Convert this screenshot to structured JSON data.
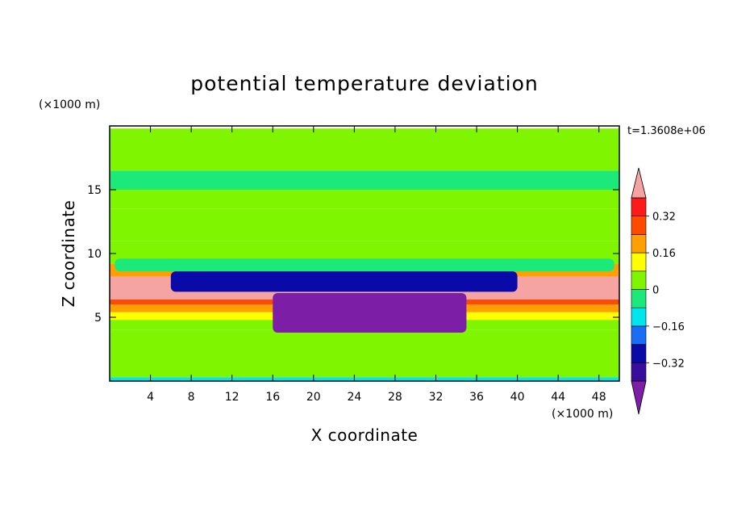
{
  "chart_data": {
    "type": "heatmap",
    "title": "potential temperature deviation",
    "xlabel": "X coordinate",
    "ylabel": "Z coordinate",
    "x_unit": "(×1000 m)",
    "y_unit": "(×1000 m)",
    "time_stamp": "t=1.3608e+06",
    "xlim": [
      0,
      50
    ],
    "ylim": [
      0,
      20
    ],
    "x_ticks": [
      4,
      8,
      12,
      16,
      20,
      24,
      28,
      32,
      36,
      40,
      44,
      48
    ],
    "y_ticks": [
      5,
      10,
      15
    ],
    "colorbar": {
      "levels": [
        -0.4,
        -0.32,
        -0.24,
        -0.16,
        -0.08,
        0,
        0.08,
        0.16,
        0.24,
        0.32,
        0.4
      ],
      "labels": [
        {
          "value": 0.32,
          "text": "0.32"
        },
        {
          "value": 0.16,
          "text": "0.16"
        },
        {
          "value": 0,
          "text": "0"
        },
        {
          "value": -0.16,
          "text": "−0.16"
        },
        {
          "value": -0.32,
          "text": "−0.32"
        }
      ],
      "colors": [
        "#7c1fa6",
        "#3a0e9c",
        "#0a0aa8",
        "#1a6ef5",
        "#00e5ee",
        "#1de87a",
        "#80f500",
        "#ffff00",
        "#ffa000",
        "#ff4a00",
        "#ff1a1a",
        "#f5a3a3"
      ],
      "extend": "both"
    },
    "bands": [
      {
        "z": [
          0.0,
          0.3
        ],
        "value": -0.12
      },
      {
        "z": [
          0.3,
          4.0
        ],
        "value": 0.02
      },
      {
        "z": [
          4.0,
          4.8
        ],
        "value": 0.06
      },
      {
        "z": [
          4.8,
          5.4
        ],
        "value": 0.14
      },
      {
        "z": [
          5.4,
          6.0
        ],
        "value": 0.22
      },
      {
        "z": [
          6.0,
          6.4
        ],
        "value": 0.3
      },
      {
        "z": [
          6.4,
          8.2
        ],
        "value": 0.42
      },
      {
        "z": [
          8.2,
          9.2
        ],
        "value": 0.2
      },
      {
        "z": [
          9.2,
          11.0
        ],
        "value": 0.05
      },
      {
        "z": [
          11.0,
          13.5
        ],
        "value": 0.03
      },
      {
        "z": [
          13.5,
          15.0
        ],
        "value": 0.05
      },
      {
        "z": [
          15.0,
          16.5
        ],
        "value": -0.02
      },
      {
        "z": [
          16.5,
          19.8
        ],
        "value": 0.04
      }
    ],
    "anomaly_layers": [
      {
        "x": [
          0.5,
          49.5
        ],
        "z": [
          8.6,
          9.6
        ],
        "value": -0.05
      },
      {
        "x": [
          6.0,
          40.0
        ],
        "z": [
          7.0,
          8.6
        ],
        "value": -0.3
      },
      {
        "x": [
          16.0,
          35.0
        ],
        "z": [
          3.8,
          6.9
        ],
        "value": -0.44
      }
    ]
  }
}
